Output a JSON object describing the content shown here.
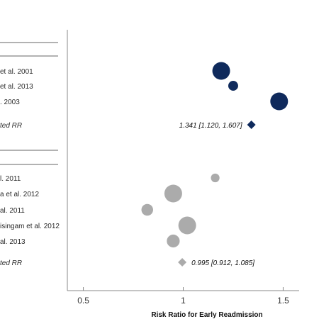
{
  "chart_data": {
    "type": "scatter",
    "xlabel": "Risk Ratio for Early Readmission",
    "xlim": [
      0.42,
      1.58
    ],
    "xticks": [
      "0.5",
      "1",
      "1.5"
    ],
    "colors": {
      "group1": "#0f2a5c",
      "group2": "#ababab",
      "axis": "#888888",
      "text": "#222222"
    },
    "groups": [
      {
        "color": "#0f2a5c",
        "studies": [
          {
            "label": "et al. 2001",
            "rr": 1.19,
            "weight": 1.0
          },
          {
            "label": "et al. 2013",
            "rr": 1.25,
            "weight": 0.35
          },
          {
            "label": ". 2003",
            "rr": 1.48,
            "weight": 1.0
          }
        ],
        "pooled": {
          "label": "ted RR",
          "rr": 1.341,
          "ci_text": "1.341 [1.120, 1.607]"
        }
      },
      {
        "color": "#ababab",
        "studies": [
          {
            "label": "l. 2011",
            "rr": 1.16,
            "weight": 0.25
          },
          {
            "label": "a et al. 2012",
            "rr": 0.95,
            "weight": 1.0
          },
          {
            "label": "al. 2011",
            "rr": 0.82,
            "weight": 0.5
          },
          {
            "label": "isingam et al. 2012",
            "rr": 1.02,
            "weight": 1.0
          },
          {
            "label": "al. 2013",
            "rr": 0.95,
            "weight": 0.6
          }
        ],
        "pooled": {
          "label": "ted RR",
          "rr": 0.995,
          "ci_text": "0.995 [0.912, 1.085]"
        }
      }
    ]
  }
}
